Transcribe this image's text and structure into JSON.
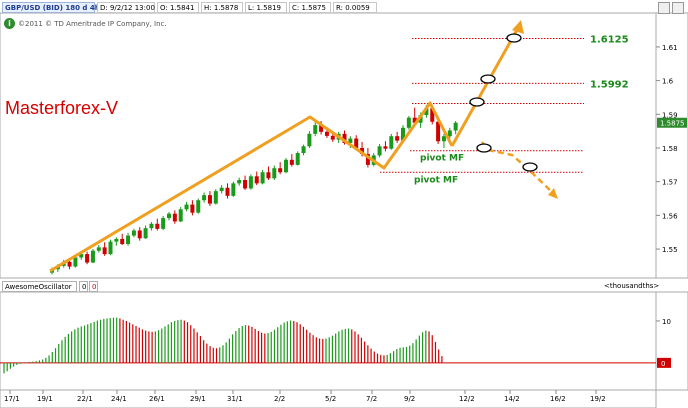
{
  "header": {
    "symbol": "GBP/USD (BID) 180 d 4h",
    "date": "D: 9/2/12 13:00",
    "open": "O: 1.5841",
    "high": "H: 1.5878",
    "low": "L: 1.5819",
    "close": "C: 1.5875",
    "range": "R: 0.0059"
  },
  "copyright": "©2011 © TD Ameritrade IP Company, Inc.",
  "brand": "Masterforex-V",
  "levels": [
    {
      "label": "1.6125",
      "value": 1.6125
    },
    {
      "label": "1.5992",
      "value": 1.5992
    }
  ],
  "pivots": [
    {
      "label": "pivot MF",
      "value": 1.5792
    },
    {
      "label": "pivot MF",
      "value": 1.5728
    }
  ],
  "current_price": "1.5875",
  "oscillator": {
    "name": "AwesomeOscillator",
    "value1": "0",
    "value2": "0",
    "units": "<thousandths>",
    "tick_10": "10",
    "tick_0": "0"
  },
  "chart_data": {
    "type": "candlestick",
    "ylim": [
      1.542,
      1.618
    ],
    "y_ticks": [
      "1.61",
      "1.6",
      "1.59",
      "1.58",
      "1.57",
      "1.56",
      "1.55"
    ],
    "y_tick_values": [
      1.61,
      1.6,
      1.59,
      1.58,
      1.57,
      1.56,
      1.55
    ],
    "x_ticks": [
      "17/1",
      "19/1",
      "22/1",
      "24/1",
      "26/1",
      "29/1",
      "31/1",
      "2/2",
      "5/2",
      "7/2",
      "9/2",
      "12/2",
      "14/2",
      "16/2",
      "19/2"
    ],
    "candles": [
      [
        1.543,
        1.5445,
        1.5425,
        1.544
      ],
      [
        1.544,
        1.5455,
        1.5432,
        1.545
      ],
      [
        1.545,
        1.5468,
        1.5445,
        1.5462
      ],
      [
        1.5462,
        1.547,
        1.544,
        1.5448
      ],
      [
        1.5448,
        1.548,
        1.5445,
        1.5475
      ],
      [
        1.5475,
        1.549,
        1.5468,
        1.5485
      ],
      [
        1.5485,
        1.5492,
        1.5455,
        1.546
      ],
      [
        1.546,
        1.55,
        1.5458,
        1.5495
      ],
      [
        1.5495,
        1.5512,
        1.549,
        1.5505
      ],
      [
        1.5505,
        1.552,
        1.548,
        1.5485
      ],
      [
        1.5485,
        1.5528,
        1.5482,
        1.5522
      ],
      [
        1.5522,
        1.5535,
        1.551,
        1.553
      ],
      [
        1.553,
        1.5545,
        1.5512,
        1.5515
      ],
      [
        1.5515,
        1.5548,
        1.551,
        1.554
      ],
      [
        1.554,
        1.556,
        1.5535,
        1.5555
      ],
      [
        1.5555,
        1.5565,
        1.5525,
        1.5532
      ],
      [
        1.5532,
        1.557,
        1.553,
        1.5562
      ],
      [
        1.5562,
        1.558,
        1.5555,
        1.5575
      ],
      [
        1.5575,
        1.559,
        1.5555,
        1.556
      ],
      [
        1.556,
        1.5598,
        1.5556,
        1.5592
      ],
      [
        1.5592,
        1.561,
        1.5585,
        1.5605
      ],
      [
        1.5605,
        1.5615,
        1.5575,
        1.5582
      ],
      [
        1.5582,
        1.5625,
        1.558,
        1.5618
      ],
      [
        1.5618,
        1.564,
        1.5612,
        1.5632
      ],
      [
        1.5632,
        1.5645,
        1.56,
        1.5608
      ],
      [
        1.5608,
        1.565,
        1.5605,
        1.5645
      ],
      [
        1.5645,
        1.5668,
        1.5638,
        1.566
      ],
      [
        1.566,
        1.5672,
        1.5628,
        1.5635
      ],
      [
        1.5635,
        1.5678,
        1.5632,
        1.5672
      ],
      [
        1.5672,
        1.569,
        1.5665,
        1.5682
      ],
      [
        1.5682,
        1.5695,
        1.565,
        1.5658
      ],
      [
        1.5658,
        1.57,
        1.5655,
        1.5695
      ],
      [
        1.5695,
        1.5712,
        1.5688,
        1.5705
      ],
      [
        1.5705,
        1.5718,
        1.5675,
        1.568
      ],
      [
        1.568,
        1.5722,
        1.5676,
        1.5716
      ],
      [
        1.5716,
        1.573,
        1.569,
        1.5695
      ],
      [
        1.5695,
        1.5735,
        1.5692,
        1.5728
      ],
      [
        1.5728,
        1.5745,
        1.5705,
        1.571
      ],
      [
        1.571,
        1.5748,
        1.5705,
        1.574
      ],
      [
        1.574,
        1.5758,
        1.5722,
        1.5728
      ],
      [
        1.5728,
        1.577,
        1.5725,
        1.5765
      ],
      [
        1.5765,
        1.5782,
        1.5745,
        1.575
      ],
      [
        1.575,
        1.579,
        1.5748,
        1.5785
      ],
      [
        1.5785,
        1.581,
        1.5778,
        1.5805
      ],
      [
        1.5805,
        1.585,
        1.58,
        1.5842
      ],
      [
        1.5842,
        1.5878,
        1.5835,
        1.5868
      ],
      [
        1.5868,
        1.588,
        1.584,
        1.5848
      ],
      [
        1.5848,
        1.5862,
        1.583,
        1.5836
      ],
      [
        1.5836,
        1.585,
        1.5818,
        1.5825
      ],
      [
        1.5825,
        1.5848,
        1.5815,
        1.5842
      ],
      [
        1.5842,
        1.5852,
        1.581,
        1.5815
      ],
      [
        1.5815,
        1.5835,
        1.58,
        1.5828
      ],
      [
        1.5828,
        1.5838,
        1.5795,
        1.58
      ],
      [
        1.58,
        1.5818,
        1.5775,
        1.5782
      ],
      [
        1.5782,
        1.58,
        1.5742,
        1.575
      ],
      [
        1.575,
        1.5785,
        1.5745,
        1.5778
      ],
      [
        1.5778,
        1.5812,
        1.5772,
        1.5805
      ],
      [
        1.5805,
        1.582,
        1.579,
        1.5798
      ],
      [
        1.5798,
        1.5842,
        1.5795,
        1.5835
      ],
      [
        1.5835,
        1.5848,
        1.5815,
        1.5822
      ],
      [
        1.5822,
        1.5868,
        1.5818,
        1.586
      ],
      [
        1.586,
        1.5895,
        1.5855,
        1.589
      ],
      [
        1.589,
        1.592,
        1.587,
        1.5875
      ],
      [
        1.5875,
        1.5905,
        1.586,
        1.5898
      ],
      [
        1.5898,
        1.5928,
        1.589,
        1.5918
      ],
      [
        1.5918,
        1.5922,
        1.587,
        1.5878
      ],
      [
        1.5878,
        1.589,
        1.5812,
        1.582
      ],
      [
        1.582,
        1.5842,
        1.58,
        1.5835
      ],
      [
        1.5835,
        1.586,
        1.5828,
        1.5852
      ],
      [
        1.5852,
        1.588,
        1.5841,
        1.5875
      ]
    ],
    "ao_values": [
      -2.5,
      -2.0,
      -1.4,
      -0.9,
      -0.5,
      -0.2,
      -0.1,
      0.1,
      0.2,
      0.3,
      0.4,
      0.6,
      0.8,
      1.2,
      1.8,
      2.6,
      3.5,
      4.5,
      5.4,
      6.2,
      6.9,
      7.5,
      8.0,
      8.4,
      8.7,
      8.9,
      9.2,
      9.5,
      9.8,
      10.1,
      10.3,
      10.5,
      10.6,
      10.7,
      10.8,
      10.8,
      10.6,
      10.3,
      10.0,
      9.6,
      9.2,
      8.8,
      8.4,
      8.0,
      7.7,
      7.5,
      7.4,
      7.5,
      7.8,
      8.2,
      8.7,
      9.2,
      9.7,
      10.0,
      10.2,
      10.3,
      10.1,
      9.7,
      9.0,
      8.2,
      7.3,
      6.4,
      5.4,
      4.6,
      4.0,
      3.6,
      3.5,
      3.7,
      4.2,
      4.9,
      5.8,
      6.8,
      7.6,
      8.3,
      8.8,
      9.0,
      8.9,
      8.6,
      8.1,
      7.6,
      7.2,
      7.0,
      7.1,
      7.4,
      7.9,
      8.5,
      9.1,
      9.6,
      9.9,
      10.1,
      10.0,
      9.7,
      9.2,
      8.6,
      7.9,
      7.2,
      6.6,
      6.1,
      5.8,
      5.7,
      5.8,
      6.1,
      6.5,
      7.0,
      7.5,
      7.9,
      8.1,
      8.2,
      8.0,
      7.5,
      6.8,
      6.0,
      5.1,
      4.2,
      3.4,
      2.7,
      2.2,
      1.9,
      1.8,
      1.9,
      2.3,
      2.8,
      3.3,
      3.6,
      3.7,
      3.8,
      4.1,
      4.7,
      5.6,
      6.5,
      7.3,
      7.7,
      7.5,
      6.6,
      5.0,
      3.2,
      1.6
    ],
    "ao_ylim": [
      -6,
      15
    ]
  }
}
